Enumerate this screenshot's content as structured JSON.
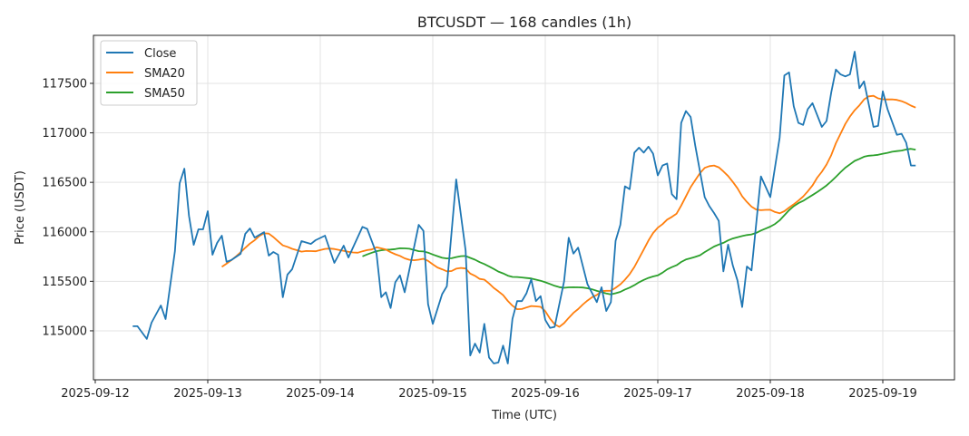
{
  "chart_data": {
    "type": "line",
    "title": "BTCUSDT — 168 candles (1h)",
    "xlabel": "Time (UTC)",
    "ylabel": "Price (USDT)",
    "x_start": "2025-09-12 08:00",
    "x_step_hours": 1,
    "n_candles": 168,
    "xlim_days": [
      -0.016,
      7.637
    ],
    "ylim": [
      114505,
      117985
    ],
    "x_ticks": [
      "2025-09-12",
      "2025-09-13",
      "2025-09-14",
      "2025-09-15",
      "2025-09-16",
      "2025-09-17",
      "2025-09-18",
      "2025-09-19"
    ],
    "y_ticks": [
      115000,
      115500,
      116000,
      116500,
      117000,
      117500
    ],
    "y_tick_labels": [
      "115000",
      "115500",
      "116000",
      "116500",
      "117000",
      "117500"
    ],
    "grid": true,
    "legend": {
      "placement": "top-left",
      "entries": [
        "Close",
        "SMA20",
        "SMA50"
      ]
    },
    "series": [
      {
        "name": "Close",
        "color": "#1f77b4",
        "points_hour_value": [
          [
            0,
            115046
          ],
          [
            1,
            115046
          ],
          [
            3,
            114918
          ],
          [
            4,
            115082
          ],
          [
            6,
            115256
          ],
          [
            7,
            115119
          ],
          [
            9,
            115805
          ],
          [
            10,
            116491
          ],
          [
            11,
            116638
          ],
          [
            12,
            116162
          ],
          [
            13,
            115869
          ],
          [
            14,
            116025
          ],
          [
            15,
            116025
          ],
          [
            16,
            116208
          ],
          [
            17,
            115769
          ],
          [
            18,
            115888
          ],
          [
            19,
            115961
          ],
          [
            20,
            115696
          ],
          [
            21,
            115714
          ],
          [
            23,
            115778
          ],
          [
            24,
            115979
          ],
          [
            25,
            116034
          ],
          [
            26,
            115942
          ],
          [
            28,
            115997
          ],
          [
            29,
            115760
          ],
          [
            30,
            115796
          ],
          [
            31,
            115769
          ],
          [
            32,
            115339
          ],
          [
            33,
            115567
          ],
          [
            34,
            115622
          ],
          [
            36,
            115906
          ],
          [
            38,
            115878
          ],
          [
            39,
            115915
          ],
          [
            41,
            115961
          ],
          [
            43,
            115686
          ],
          [
            45,
            115860
          ],
          [
            46,
            115740
          ],
          [
            49,
            116050
          ],
          [
            50,
            116030
          ],
          [
            52,
            115780
          ],
          [
            53,
            115340
          ],
          [
            54,
            115390
          ],
          [
            55,
            115230
          ],
          [
            56,
            115490
          ],
          [
            57,
            115560
          ],
          [
            58,
            115390
          ],
          [
            61,
            116070
          ],
          [
            62,
            116010
          ],
          [
            63,
            115270
          ],
          [
            64,
            115070
          ],
          [
            66,
            115370
          ],
          [
            67,
            115450
          ],
          [
            69,
            116530
          ],
          [
            71,
            115810
          ],
          [
            72,
            114750
          ],
          [
            73,
            114870
          ],
          [
            74,
            114780
          ],
          [
            75,
            115070
          ],
          [
            76,
            114730
          ],
          [
            77,
            114670
          ],
          [
            78,
            114680
          ],
          [
            79,
            114850
          ],
          [
            80,
            114670
          ],
          [
            81,
            115120
          ],
          [
            82,
            115300
          ],
          [
            83,
            115300
          ],
          [
            84,
            115380
          ],
          [
            85,
            115520
          ],
          [
            86,
            115300
          ],
          [
            87,
            115350
          ],
          [
            88,
            115110
          ],
          [
            89,
            115030
          ],
          [
            90,
            115040
          ],
          [
            92,
            115500
          ],
          [
            93,
            115940
          ],
          [
            94,
            115780
          ],
          [
            95,
            115840
          ],
          [
            97,
            115470
          ],
          [
            99,
            115290
          ],
          [
            100,
            115440
          ],
          [
            101,
            115200
          ],
          [
            102,
            115290
          ],
          [
            103,
            115910
          ],
          [
            104,
            116070
          ],
          [
            105,
            116460
          ],
          [
            106,
            116430
          ],
          [
            107,
            116800
          ],
          [
            108,
            116850
          ],
          [
            109,
            116800
          ],
          [
            110,
            116860
          ],
          [
            111,
            116790
          ],
          [
            112,
            116570
          ],
          [
            113,
            116670
          ],
          [
            114,
            116690
          ],
          [
            115,
            116380
          ],
          [
            116,
            116330
          ],
          [
            117,
            117100
          ],
          [
            118,
            117220
          ],
          [
            119,
            117160
          ],
          [
            120,
            116870
          ],
          [
            122,
            116350
          ],
          [
            123,
            116260
          ],
          [
            124,
            116190
          ],
          [
            125,
            116110
          ],
          [
            126,
            115600
          ],
          [
            127,
            115870
          ],
          [
            128,
            115660
          ],
          [
            129,
            115510
          ],
          [
            130,
            115240
          ],
          [
            131,
            115650
          ],
          [
            132,
            115610
          ],
          [
            134,
            116560
          ],
          [
            136,
            116350
          ],
          [
            138,
            116950
          ],
          [
            139,
            117580
          ],
          [
            140,
            117610
          ],
          [
            141,
            117270
          ],
          [
            142,
            117100
          ],
          [
            143,
            117080
          ],
          [
            144,
            117240
          ],
          [
            145,
            117300
          ],
          [
            147,
            117060
          ],
          [
            148,
            117120
          ],
          [
            149,
            117410
          ],
          [
            150,
            117640
          ],
          [
            151,
            117590
          ],
          [
            152,
            117570
          ],
          [
            153,
            117590
          ],
          [
            154,
            117820
          ],
          [
            155,
            117450
          ],
          [
            156,
            117520
          ],
          [
            158,
            117060
          ],
          [
            159,
            117070
          ],
          [
            160,
            117420
          ],
          [
            161,
            117240
          ],
          [
            163,
            116980
          ],
          [
            164,
            116990
          ],
          [
            165,
            116900
          ],
          [
            166,
            116670
          ],
          [
            167,
            116670
          ]
        ]
      },
      {
        "name": "SMA20",
        "color": "#ff7f0e",
        "window": 20
      },
      {
        "name": "SMA50",
        "color": "#2ca02c",
        "window": 50
      }
    ]
  }
}
